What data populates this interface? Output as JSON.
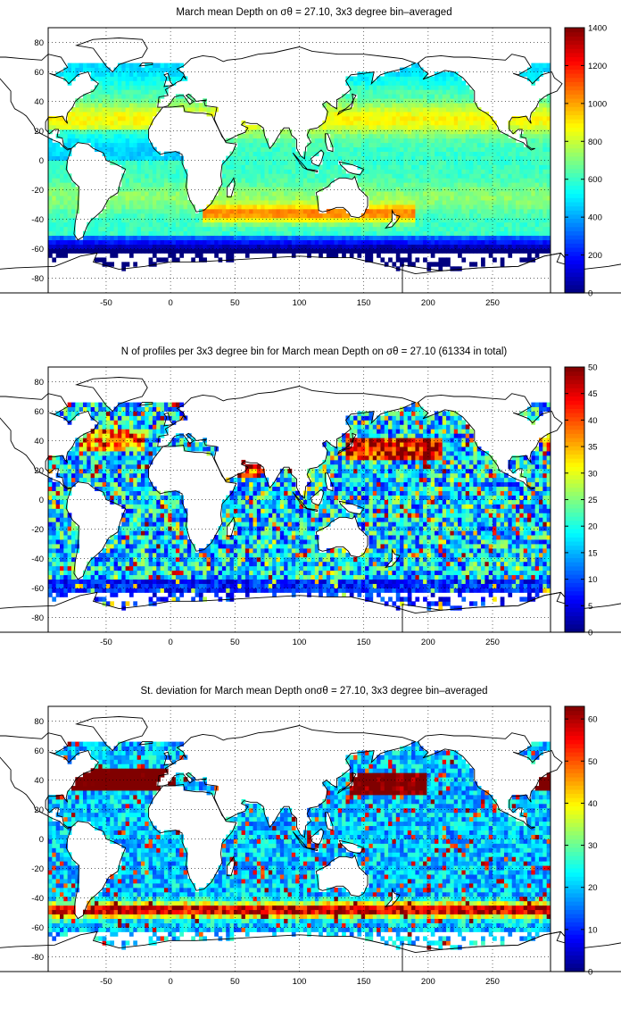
{
  "chart_data": [
    {
      "type": "heatmap",
      "title": "March mean Depth on σθ = 27.10, 3x3 degree bin–averaged",
      "x_ticks": [
        "-50",
        "0",
        "50",
        "100",
        "150",
        "200",
        "250"
      ],
      "y_ticks": [
        "80",
        "60",
        "40",
        "20",
        "0",
        "-20",
        "-40",
        "-60",
        "-80"
      ],
      "xlim": [
        -95,
        295
      ],
      "ylim": [
        -90,
        90
      ],
      "colorbar": {
        "min": 0,
        "max": 1400,
        "ticks": [
          "0",
          "200",
          "400",
          "600",
          "800",
          "1000",
          "1200",
          "1400"
        ]
      },
      "grid": true,
      "bins_deg": 3
    },
    {
      "type": "heatmap",
      "title": "N of profiles per 3x3 degree bin for March mean Depth on σθ = 27.10 (61334 in total)",
      "x_ticks": [
        "-50",
        "0",
        "50",
        "100",
        "150",
        "200",
        "250"
      ],
      "y_ticks": [
        "80",
        "60",
        "40",
        "20",
        "0",
        "-20",
        "-40",
        "-60",
        "-80"
      ],
      "xlim": [
        -95,
        295
      ],
      "ylim": [
        -90,
        90
      ],
      "colorbar": {
        "min": 0,
        "max": 50,
        "ticks": [
          "0",
          "5",
          "10",
          "15",
          "20",
          "25",
          "30",
          "35",
          "40",
          "45",
          "50"
        ]
      },
      "total_profiles": 61334,
      "grid": true,
      "bins_deg": 3
    },
    {
      "type": "heatmap",
      "title": "St. deviation for March mean Depth onσθ = 27.10, 3x3 degree bin–averaged",
      "x_ticks": [
        "-50",
        "0",
        "50",
        "100",
        "150",
        "200",
        "250"
      ],
      "y_ticks": [
        "80",
        "60",
        "40",
        "20",
        "0",
        "-20",
        "-40",
        "-60",
        "-80"
      ],
      "xlim": [
        -95,
        295
      ],
      "ylim": [
        -90,
        90
      ],
      "colorbar": {
        "min": 0,
        "max": 63,
        "ticks": [
          "0",
          "10",
          "20",
          "30",
          "40",
          "50",
          "60"
        ]
      },
      "grid": true,
      "bins_deg": 3
    }
  ],
  "colors": {
    "land": "#ffffff",
    "coast": "#000000",
    "grid": "#000000"
  }
}
